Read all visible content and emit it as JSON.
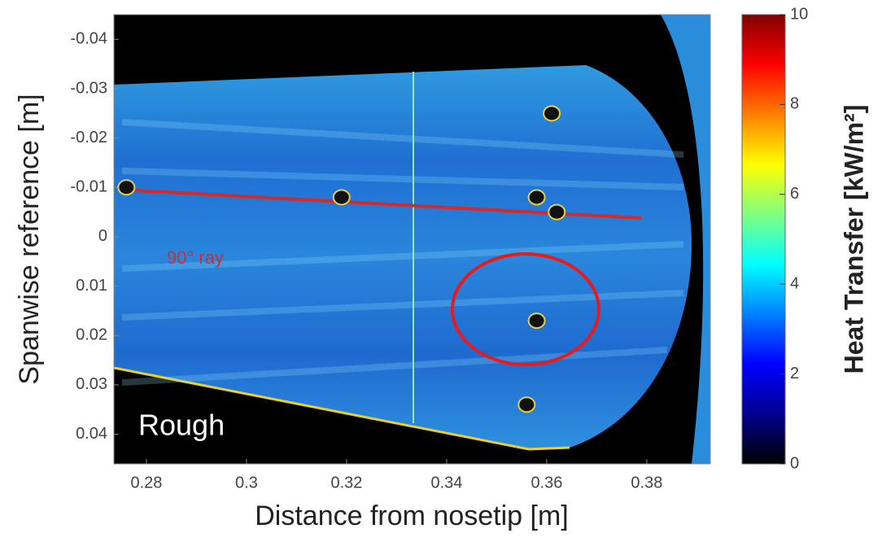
{
  "chart_data": {
    "type": "heatmap-image",
    "xlabel": "Distance from nosetip [m]",
    "ylabel": "Spanwise reference [m]",
    "xlim": [
      0.2735,
      0.3927
    ],
    "xticks": [
      0.28,
      0.3,
      0.32,
      0.34,
      0.36,
      0.38
    ],
    "ylim": [
      -0.045,
      0.046
    ],
    "y_inverted": true,
    "yticks": [
      -0.04,
      -0.03,
      -0.02,
      -0.01,
      0,
      0.01,
      0.02,
      0.03,
      0.04
    ],
    "colorbar": {
      "label": "Heat Transfer [kW/m²]",
      "lim": [
        0,
        10
      ],
      "ticks": [
        0,
        2,
        4,
        6,
        8,
        10
      ],
      "colormap": [
        "#000000",
        "#00008f",
        "#0000ff",
        "#0080ff",
        "#00ffff",
        "#80ff80",
        "#ffff00",
        "#ff8000",
        "#ff0000",
        "#800000"
      ]
    },
    "series": [
      {
        "type": "line",
        "color": "#d42a2a",
        "x": [
          0.276,
          0.379
        ],
        "y": [
          -0.0095,
          -0.0038
        ]
      },
      {
        "type": "scatter",
        "color": "#111111",
        "x": [
          0.276,
          0.319,
          0.361,
          0.358,
          0.362,
          0.358,
          0.356
        ],
        "y": [
          -0.01,
          -0.008,
          -0.025,
          -0.008,
          -0.005,
          0.017,
          0.034
        ]
      }
    ],
    "annotations": [
      "90° ray",
      "Rough"
    ]
  }
}
